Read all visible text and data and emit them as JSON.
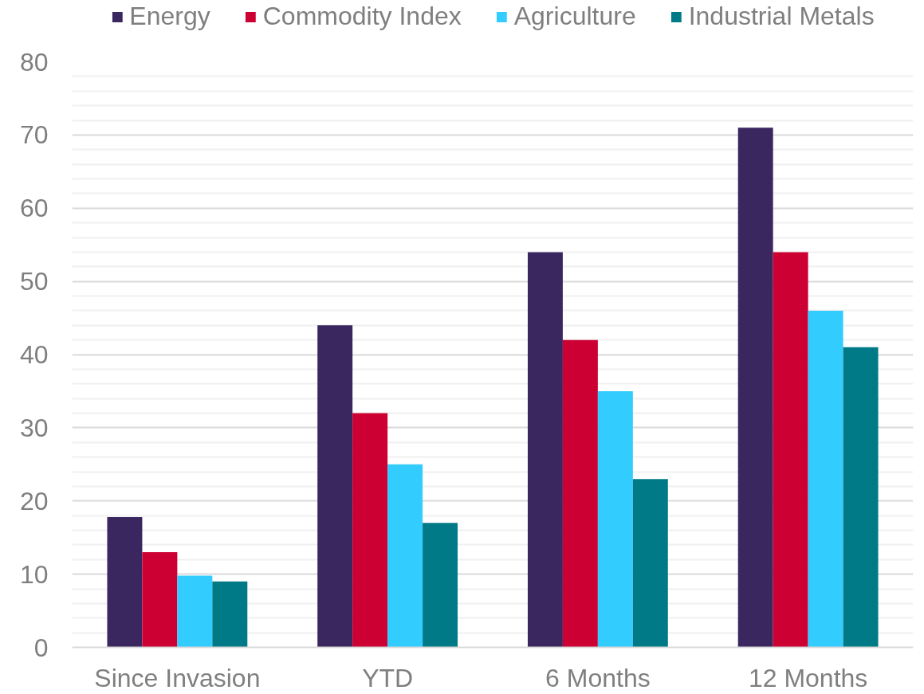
{
  "chart_data": {
    "type": "bar",
    "categories": [
      "Since Invasion",
      "YTD",
      "6 Months",
      "12 Months"
    ],
    "series": [
      {
        "name": "Energy",
        "color": "#3b2760",
        "values": [
          17.8,
          44,
          54,
          71
        ]
      },
      {
        "name": "Commodity Index",
        "color": "#cc0033",
        "values": [
          13,
          32,
          42,
          54
        ]
      },
      {
        "name": "Agriculture",
        "color": "#33ccff",
        "values": [
          9.8,
          25,
          35,
          46
        ]
      },
      {
        "name": "Industrial Metals",
        "color": "#007a87",
        "values": [
          9,
          17,
          23,
          41
        ]
      }
    ],
    "ylim": [
      0,
      80
    ],
    "yticks": [
      0,
      {
        "value": 2,
        "label": null
      },
      {
        "value": 4,
        "label": null
      },
      {
        "value": 6,
        "label": null
      },
      {
        "value": 8,
        "label": null
      },
      10,
      {
        "value": 12,
        "label": null
      },
      {
        "value": 14,
        "label": null
      },
      {
        "value": 16,
        "label": null
      },
      {
        "value": 18,
        "label": null
      },
      20,
      {
        "value": 22,
        "label": null
      },
      {
        "value": 24,
        "label": null
      },
      {
        "value": 26,
        "label": null
      },
      {
        "value": 28,
        "label": null
      },
      30,
      {
        "value": 32,
        "label": null
      },
      {
        "value": 34,
        "label": null
      },
      {
        "value": 36,
        "label": null
      },
      {
        "value": 38,
        "label": null
      },
      40,
      {
        "value": 42,
        "label": null
      },
      {
        "value": 44,
        "label": null
      },
      {
        "value": 46,
        "label": null
      },
      {
        "value": 48,
        "label": null
      },
      50,
      {
        "value": 52,
        "label": null
      },
      {
        "value": 54,
        "label": null
      },
      {
        "value": 56,
        "label": null
      },
      {
        "value": 58,
        "label": null
      },
      60,
      {
        "value": 62,
        "label": null
      },
      {
        "value": 64,
        "label": null
      },
      {
        "value": 66,
        "label": null
      },
      {
        "value": 68,
        "label": null
      },
      70,
      {
        "value": 72,
        "label": null
      },
      {
        "value": 74,
        "label": null
      },
      {
        "value": 76,
        "label": null
      },
      {
        "value": 78,
        "label": null
      },
      80
    ],
    "grid": "y",
    "legend": "top"
  }
}
